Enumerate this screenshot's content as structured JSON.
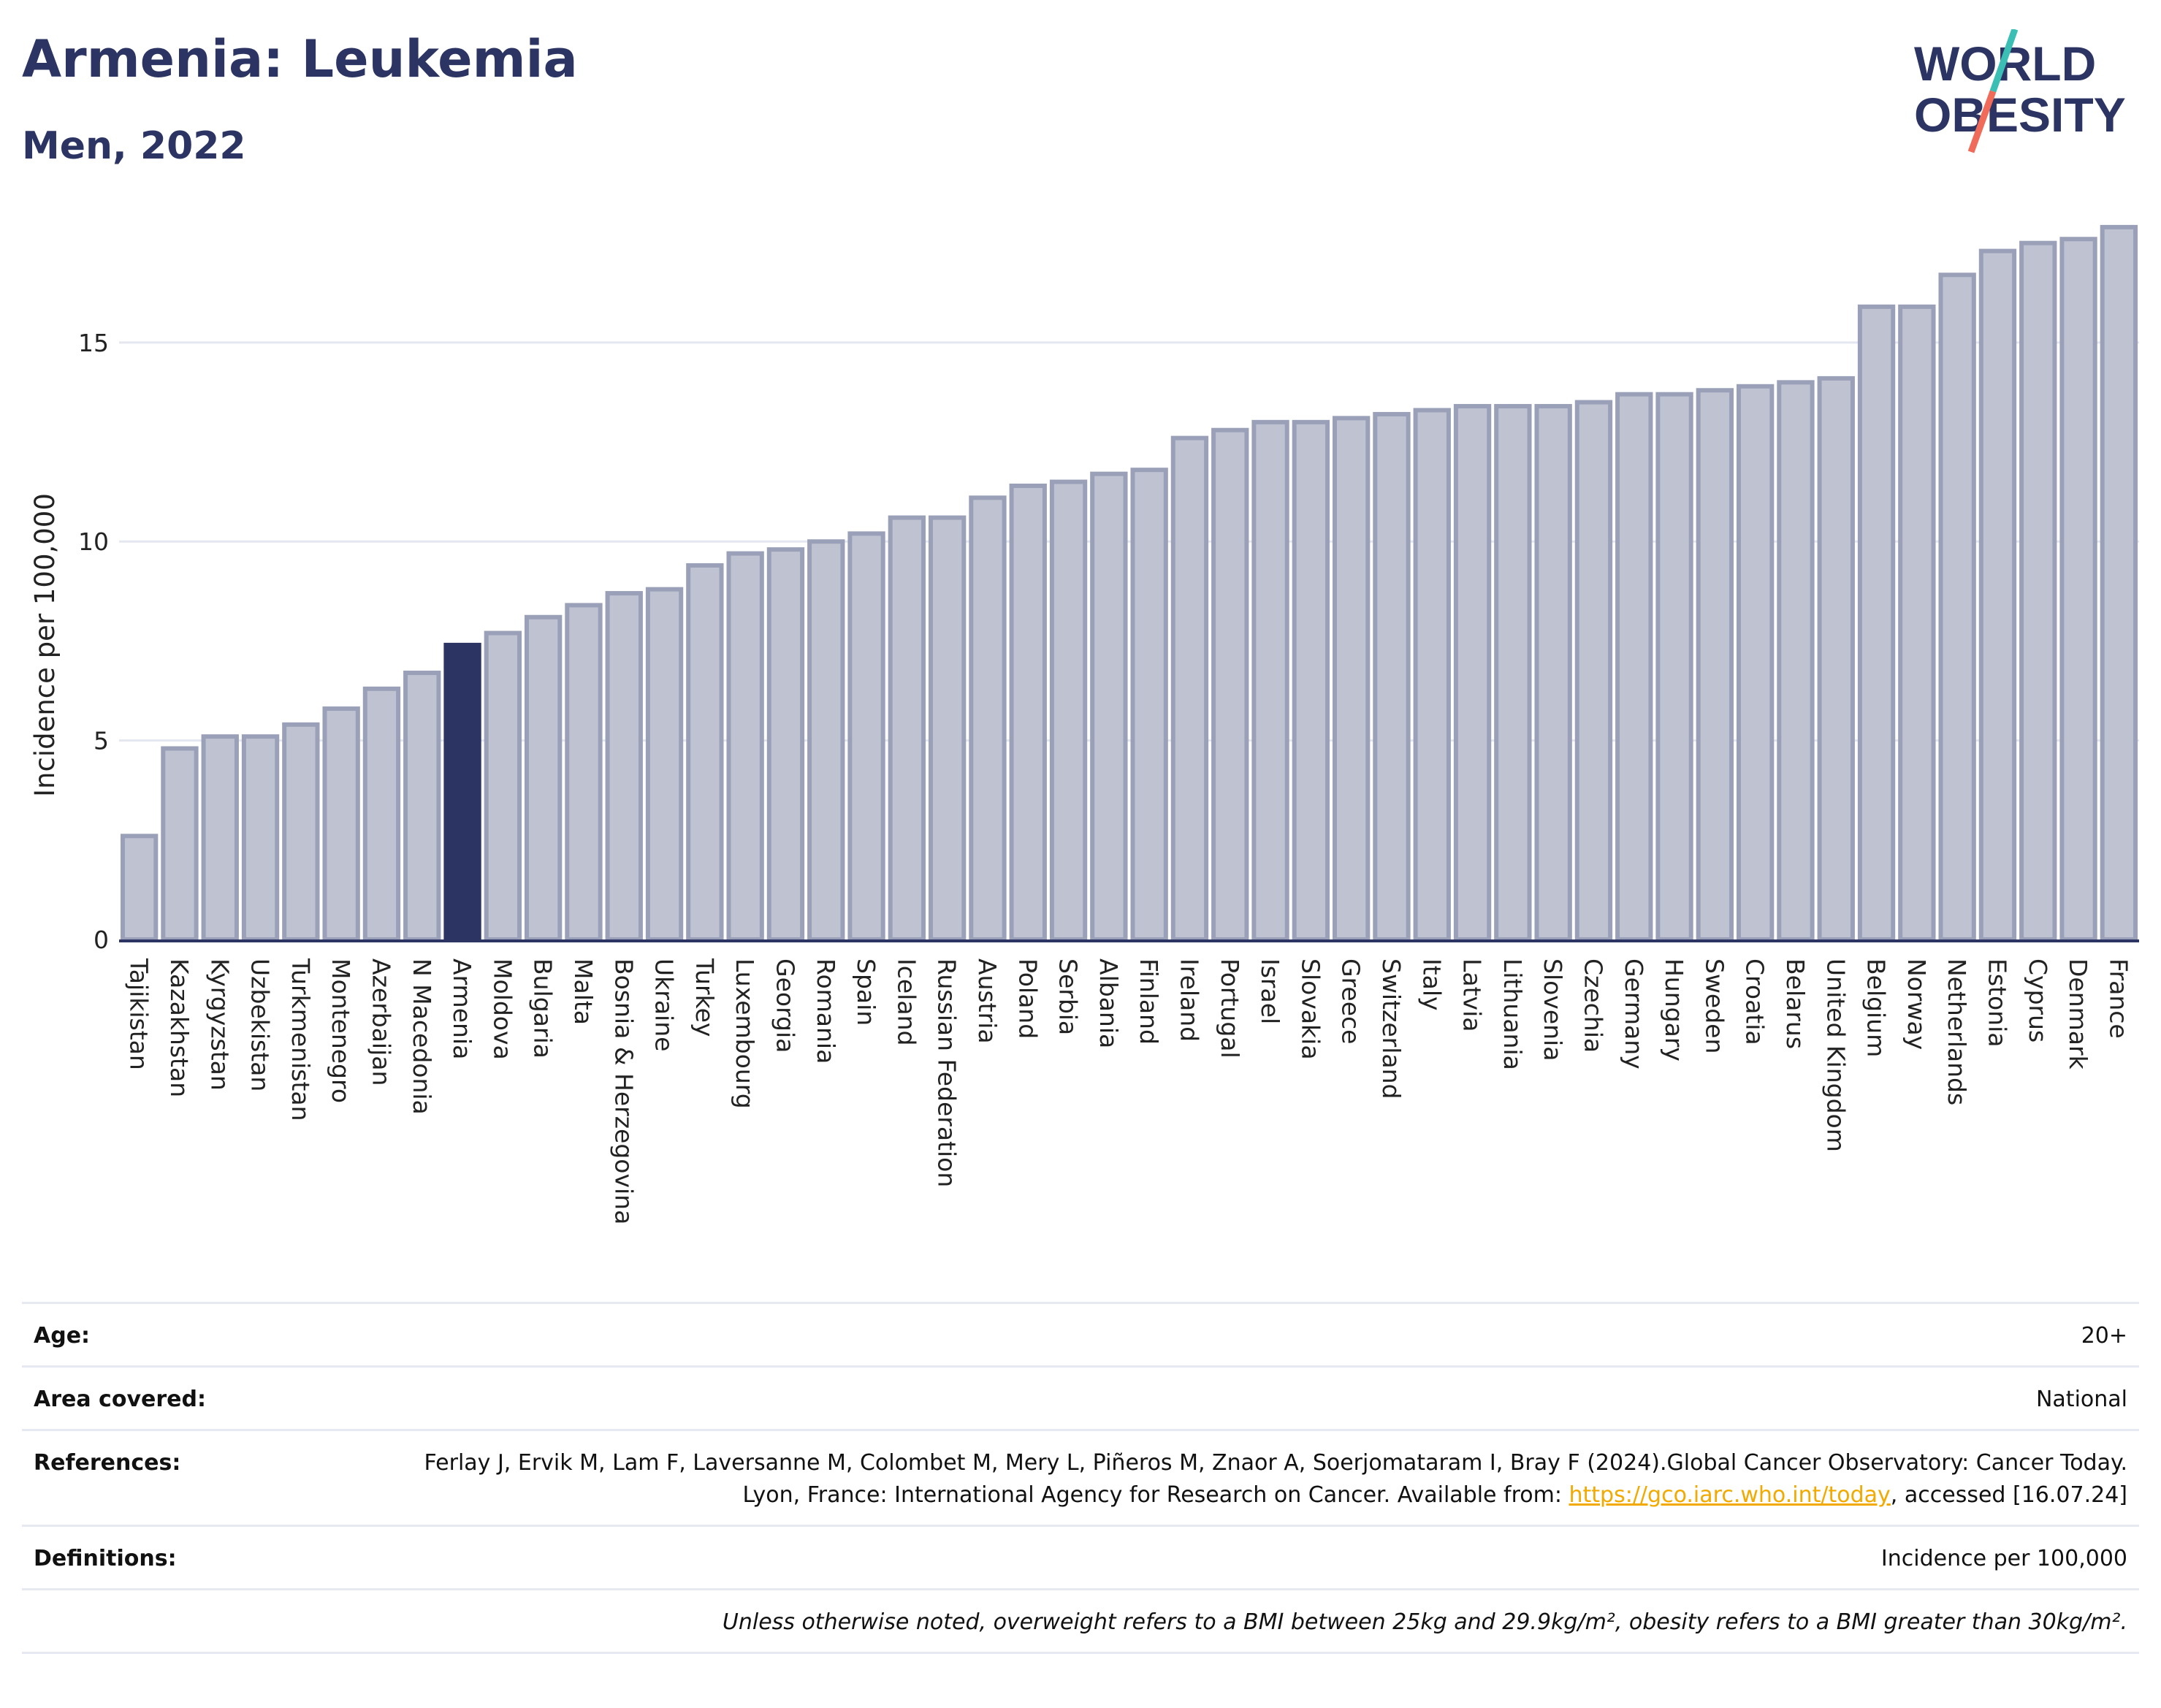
{
  "header": {
    "title": "Armenia: Leukemia",
    "subtitle": "Men, 2022"
  },
  "logo": {
    "line1": "WORLD",
    "line2": "OBESITY",
    "accent_teal": "#3bbfb4",
    "accent_coral": "#f06b5a",
    "text_color": "#2b3462"
  },
  "colors": {
    "bar": "#bfc3d1",
    "bar_border": "#9aa0b8",
    "highlight": "#2b3462",
    "grid": "#e4e7ef",
    "axis_text": "#222222"
  },
  "chart_data": {
    "type": "bar",
    "ylabel": "Incidence per 100,000",
    "xlabel": "",
    "ylim": [
      0,
      18.1
    ],
    "yticks": [
      0,
      5,
      10,
      15
    ],
    "grid": true,
    "highlight": "Armenia",
    "categories": [
      "Tajikistan",
      "Kazakhstan",
      "Kyrgyzstan",
      "Uzbekistan",
      "Turkmenistan",
      "Montenegro",
      "Azerbaijan",
      "N Macedonia",
      "Armenia",
      "Moldova",
      "Bulgaria",
      "Malta",
      "Bosnia & Herzegovina",
      "Ukraine",
      "Turkey",
      "Luxembourg",
      "Georgia",
      "Romania",
      "Spain",
      "Iceland",
      "Russian Federation",
      "Austria",
      "Poland",
      "Serbia",
      "Albania",
      "Finland",
      "Ireland",
      "Portugal",
      "Israel",
      "Slovakia",
      "Greece",
      "Switzerland",
      "Italy",
      "Latvia",
      "Lithuania",
      "Slovenia",
      "Czechia",
      "Germany",
      "Hungary",
      "Sweden",
      "Croatia",
      "Belarus",
      "United Kingdom",
      "Belgium",
      "Norway",
      "Netherlands",
      "Estonia",
      "Cyprus",
      "Denmark",
      "France"
    ],
    "values": [
      2.6,
      4.8,
      5.1,
      5.1,
      5.4,
      5.8,
      6.3,
      6.7,
      7.4,
      7.7,
      8.1,
      8.4,
      8.7,
      8.8,
      9.4,
      9.7,
      9.8,
      10.0,
      10.2,
      10.6,
      10.6,
      11.1,
      11.4,
      11.5,
      11.7,
      11.8,
      12.6,
      12.8,
      13.0,
      13.0,
      13.1,
      13.2,
      13.3,
      13.4,
      13.4,
      13.4,
      13.5,
      13.7,
      13.7,
      13.8,
      13.9,
      14.0,
      14.1,
      15.9,
      15.9,
      16.7,
      17.3,
      17.5,
      17.6,
      17.9
    ]
  },
  "meta": {
    "age_label": "Age:",
    "age_value": "20+",
    "area_label": "Area covered:",
    "area_value": "National",
    "references_label": "References:",
    "references_text1": "Ferlay J, Ervik M, Lam F, Laversanne M, Colombet M, Mery L, Piñeros M, Znaor A, Soerjomataram I, Bray F (2024).Global Cancer Observatory: Cancer Today. Lyon, France: International Agency for Research on Cancer. Available from: ",
    "references_link": "https://gco.iarc.who.int/today",
    "references_text2": ", accessed [16.07.24]",
    "definitions_label": "Definitions:",
    "definitions_value": "Incidence per 100,000",
    "note": "Unless otherwise noted, overweight refers to a BMI between 25kg and 29.9kg/m², obesity refers to a BMI greater than 30kg/m²."
  }
}
